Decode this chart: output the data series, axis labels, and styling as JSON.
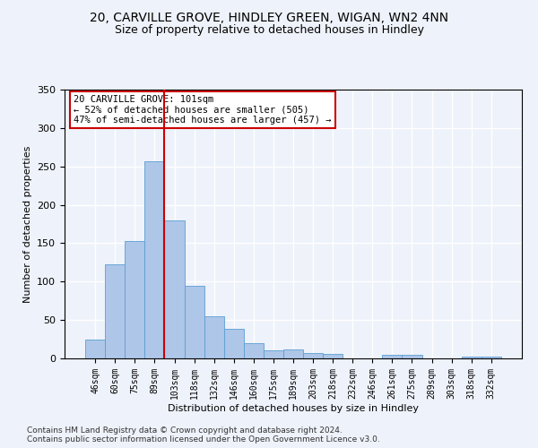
{
  "title1": "20, CARVILLE GROVE, HINDLEY GREEN, WIGAN, WN2 4NN",
  "title2": "Size of property relative to detached houses in Hindley",
  "xlabel": "Distribution of detached houses by size in Hindley",
  "ylabel": "Number of detached properties",
  "categories": [
    "46sqm",
    "60sqm",
    "75sqm",
    "89sqm",
    "103sqm",
    "118sqm",
    "132sqm",
    "146sqm",
    "160sqm",
    "175sqm",
    "189sqm",
    "203sqm",
    "218sqm",
    "232sqm",
    "246sqm",
    "261sqm",
    "275sqm",
    "289sqm",
    "303sqm",
    "318sqm",
    "332sqm"
  ],
  "values": [
    25,
    123,
    153,
    257,
    180,
    95,
    55,
    38,
    20,
    11,
    12,
    7,
    6,
    0,
    0,
    5,
    5,
    0,
    0,
    2,
    2
  ],
  "bar_color": "#aec6e8",
  "bar_edge_color": "#5a9fd4",
  "vline_x_index": 4,
  "vline_color": "#cc0000",
  "annotation_text": "20 CARVILLE GROVE: 101sqm\n← 52% of detached houses are smaller (505)\n47% of semi-detached houses are larger (457) →",
  "footer": "Contains HM Land Registry data © Crown copyright and database right 2024.\nContains public sector information licensed under the Open Government Licence v3.0.",
  "ylim": [
    0,
    350
  ],
  "background_color": "#eef2fa",
  "grid_color": "#ffffff",
  "title_fontsize": 10,
  "subtitle_fontsize": 9,
  "axis_fontsize": 8,
  "tick_fontsize": 7,
  "footer_fontsize": 6.5
}
